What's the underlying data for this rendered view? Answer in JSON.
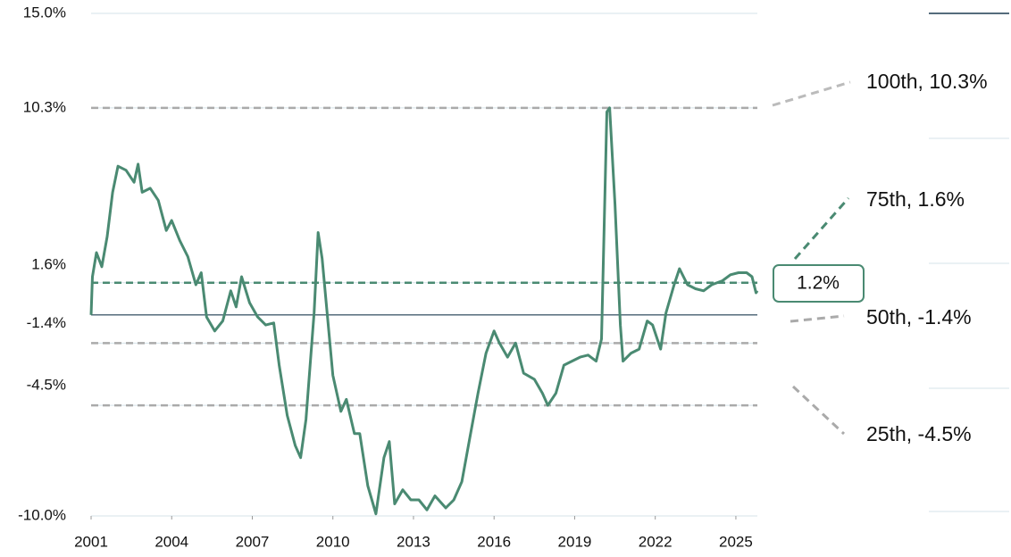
{
  "chart_data": {
    "type": "line",
    "x": [
      2001.0,
      2001.05,
      2001.2,
      2001.4,
      2001.6,
      2001.8,
      2002.0,
      2002.3,
      2002.6,
      2002.75,
      2002.9,
      2003.2,
      2003.5,
      2003.8,
      2004.0,
      2004.3,
      2004.6,
      2004.9,
      2005.1,
      2005.3,
      2005.6,
      2005.9,
      2006.2,
      2006.4,
      2006.6,
      2006.9,
      2007.2,
      2007.5,
      2007.8,
      2008.0,
      2008.3,
      2008.6,
      2008.8,
      2009.0,
      2009.3,
      2009.45,
      2009.6,
      2009.8,
      2010.0,
      2010.3,
      2010.5,
      2010.8,
      2011.0,
      2011.3,
      2011.6,
      2011.9,
      2012.1,
      2012.3,
      2012.6,
      2012.9,
      2013.2,
      2013.5,
      2013.8,
      2014.2,
      2014.5,
      2014.8,
      2015.1,
      2015.4,
      2015.7,
      2016.0,
      2016.2,
      2016.5,
      2016.8,
      2017.1,
      2017.5,
      2017.8,
      2018.0,
      2018.3,
      2018.6,
      2018.9,
      2019.2,
      2019.5,
      2019.8,
      2020.0,
      2020.2,
      2020.3,
      2020.5,
      2020.7,
      2020.8,
      2021.1,
      2021.4,
      2021.7,
      2021.9,
      2022.2,
      2022.4,
      2022.7,
      2022.9,
      2023.2,
      2023.5,
      2023.8,
      2024.1,
      2024.5,
      2024.8,
      2025.1,
      2025.4,
      2025.6,
      2025.75,
      2025.8
    ],
    "series": [
      {
        "color": "#4a8a72",
        "values": [
          0,
          1.9,
          3.1,
          2.4,
          3.9,
          6.1,
          7.4,
          7.2,
          6.6,
          7.5,
          6.1,
          6.3,
          5.7,
          4.2,
          4.7,
          3.7,
          2.9,
          1.5,
          2.1,
          -0.1,
          -0.8,
          -0.3,
          1.2,
          0.4,
          1.9,
          0.6,
          -0.1,
          -0.5,
          -0.4,
          -2.5,
          -5.0,
          -6.5,
          -7.1,
          -5.2,
          0.1,
          4.1,
          2.8,
          -0.1,
          -3.0,
          -4.8,
          -4.2,
          -5.9,
          -5.9,
          -8.5,
          -9.9,
          -7.1,
          -6.3,
          -9.4,
          -8.7,
          -9.2,
          -9.2,
          -9.7,
          -9.0,
          -9.6,
          -9.2,
          -8.3,
          -6.1,
          -3.9,
          -1.9,
          -0.8,
          -1.4,
          -2.1,
          -1.4,
          -2.9,
          -3.2,
          -3.9,
          -4.5,
          -3.9,
          -2.5,
          -2.3,
          -2.1,
          -2.0,
          -2.3,
          -1.2,
          10.1,
          10.3,
          5.5,
          -0.5,
          -2.3,
          -1.9,
          -1.7,
          -0.3,
          -0.5,
          -1.7,
          0.1,
          1.5,
          2.3,
          1.5,
          1.3,
          1.2,
          1.5,
          1.7,
          2.0,
          2.1,
          2.1,
          1.9,
          1.1,
          1.2
        ]
      }
    ],
    "xlim": [
      2001,
      2025.8
    ],
    "xticks": [
      2001,
      2004,
      2007,
      2010,
      2013,
      2016,
      2019,
      2022,
      2025
    ],
    "ylim": [
      -10,
      15
    ],
    "yticks": [
      {
        "value": 15,
        "label": "15.0%"
      },
      {
        "value": 10.3,
        "label": "10.3%"
      },
      {
        "value": 1.6,
        "label": "1.6%"
      },
      {
        "value": -1.4,
        "label": "-1.4%"
      },
      {
        "value": -4.5,
        "label": "-4.5%"
      },
      {
        "value": -10,
        "label": "-10.0%"
      }
    ],
    "reference_lines": [
      {
        "value": 10.3,
        "label": "100th, 10.3%",
        "color": "#aaaaaa"
      },
      {
        "value": 1.6,
        "label": "75th, 1.6%",
        "color": "#4a8a72"
      },
      {
        "value": -1.4,
        "label": "50th, -1.4%",
        "color": "#aaaaaa"
      },
      {
        "value": -4.5,
        "label": "25th, -4.5%",
        "color": "#aaaaaa"
      }
    ],
    "current_label": "1.2%"
  }
}
